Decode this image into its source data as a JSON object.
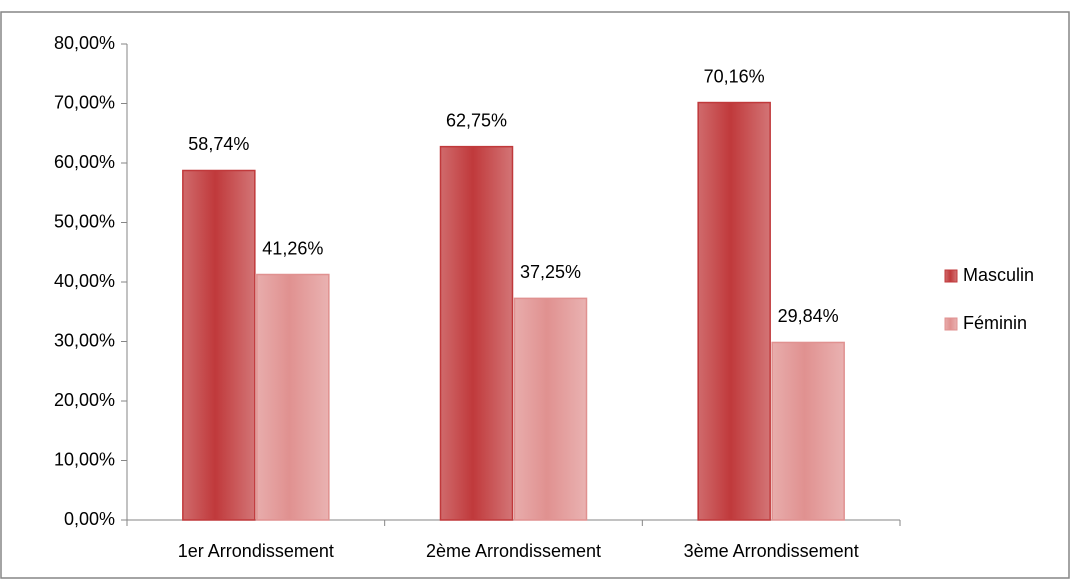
{
  "chart_data": {
    "type": "bar",
    "categories": [
      "1er Arrondissement",
      "2ème Arrondissement",
      "3ème Arrondissement"
    ],
    "series": [
      {
        "name": "Masculin",
        "color": "#c0393b",
        "values": [
          58.74,
          62.75,
          70.16
        ],
        "value_labels": [
          "58,74%",
          "62,75%",
          "70,16%"
        ]
      },
      {
        "name": "Féminin",
        "color": "#e09190",
        "values": [
          41.26,
          37.25,
          29.84
        ],
        "value_labels": [
          "41,26%",
          "37,25%",
          "29,84%"
        ]
      }
    ],
    "ylim": [
      0,
      80
    ],
    "yticks": [
      {
        "value": 0,
        "label": "0,00%"
      },
      {
        "value": 10,
        "label": "10,00%"
      },
      {
        "value": 20,
        "label": "20,00%"
      },
      {
        "value": 30,
        "label": "30,00%"
      },
      {
        "value": 40,
        "label": "40,00%"
      },
      {
        "value": 50,
        "label": "50,00%"
      },
      {
        "value": 60,
        "label": "60,00%"
      },
      {
        "value": 70,
        "label": "70,00%"
      },
      {
        "value": 80,
        "label": "80,00%"
      }
    ],
    "legend": "right"
  }
}
